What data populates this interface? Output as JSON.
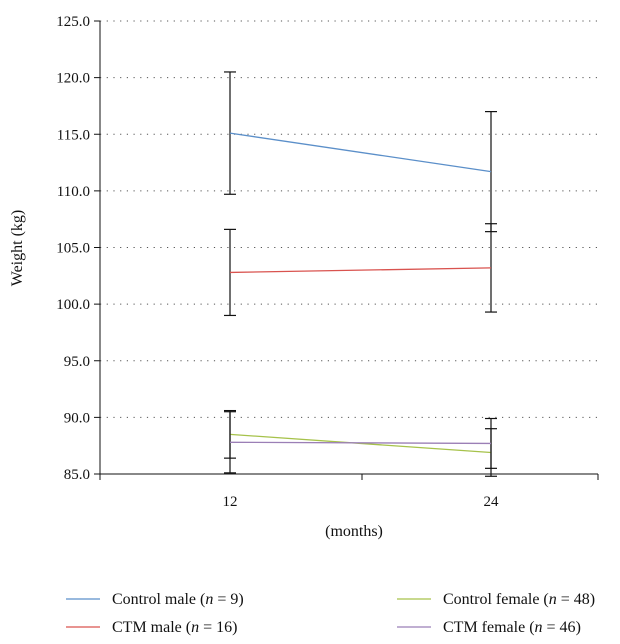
{
  "chart_data": {
    "type": "line",
    "title": "",
    "xlabel": "(months)",
    "ylabel": "Weight (kg)",
    "categories": [
      "12",
      "24"
    ],
    "ylim": [
      85.0,
      125.0
    ],
    "yticks": [
      "85.0",
      "90.0",
      "95.0",
      "100.0",
      "105.0",
      "110.0",
      "115.0",
      "120.0",
      "125.0"
    ],
    "grid": "horizontal dotted",
    "legend_placement": "bottom",
    "series": [
      {
        "name": "Control male",
        "n_label": "n",
        "n_value": "= 9",
        "color": "#5b8fc9",
        "values": [
          115.1,
          111.7
        ],
        "errors": [
          5.4,
          5.3
        ]
      },
      {
        "name": "CTM male",
        "n_label": "n",
        "n_value": "= 16",
        "color": "#d9534f",
        "values": [
          102.8,
          103.2
        ],
        "errors": [
          3.8,
          3.9
        ]
      },
      {
        "name": "Control female",
        "n_label": "n",
        "n_value": "= 48",
        "color": "#a6c24a",
        "values": [
          88.5,
          86.9
        ],
        "errors": [
          2.1,
          2.1
        ]
      },
      {
        "name": "CTM female",
        "n_label": "n",
        "n_value": "= 46",
        "color": "#9b7fb6",
        "values": [
          87.8,
          87.7
        ],
        "errors": [
          2.7,
          2.2
        ]
      }
    ]
  }
}
